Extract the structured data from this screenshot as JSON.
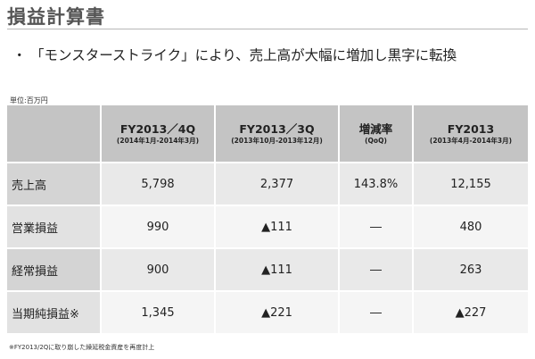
{
  "header": {
    "title": "損益計算書"
  },
  "headline": {
    "bullet": "・",
    "text": "「モンスターストライク」により、売上高が大幅に増加し黒字に転換"
  },
  "unit_label": "単位:百万円",
  "table": {
    "columns": [
      {
        "main": "",
        "sub": ""
      },
      {
        "main": "FY2013／4Q",
        "sub": "(2014年1月-2014年3月)"
      },
      {
        "main": "FY2013／3Q",
        "sub": "(2013年10月-2013年12月)"
      },
      {
        "main": "増減率",
        "sub": "(QoQ)"
      },
      {
        "main": "FY2013",
        "sub": "(2013年4月-2014年3月)"
      }
    ],
    "rows": [
      {
        "label": "売上高",
        "cells": [
          "5,798",
          "2,377",
          "143.8%",
          "12,155"
        ]
      },
      {
        "label": "営業損益",
        "cells": [
          "990",
          "▲111",
          "―",
          "480"
        ]
      },
      {
        "label": "経常損益",
        "cells": [
          "900",
          "▲111",
          "―",
          "263"
        ]
      },
      {
        "label": "当期純損益※",
        "cells": [
          "1,345",
          "▲221",
          "―",
          "▲227"
        ]
      }
    ]
  },
  "footnote": "※FY2013/2Qに取り崩した繰延税金資産を再度計上"
}
